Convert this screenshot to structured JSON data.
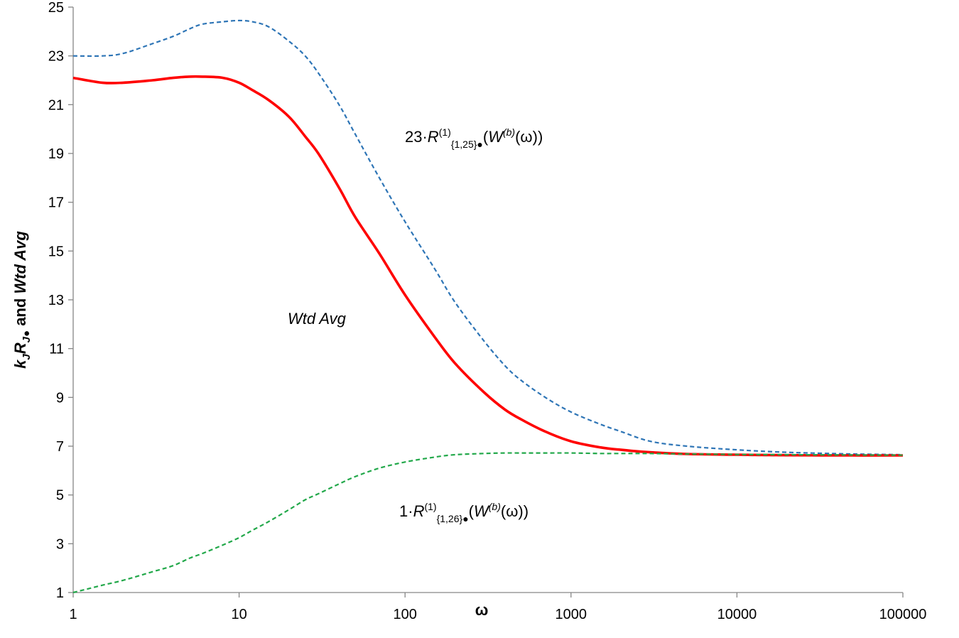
{
  "chart_data": {
    "type": "line",
    "xlabel": "ω",
    "ylabel": "k_J R_J• and Wtd Avg",
    "xscale": "log",
    "xlim": [
      1,
      100000
    ],
    "ylim": [
      1,
      25
    ],
    "x_ticks": [
      "1",
      "10",
      "100",
      "1000",
      "10000",
      "100000"
    ],
    "y_ticks": [
      "1",
      "3",
      "5",
      "7",
      "9",
      "11",
      "13",
      "15",
      "17",
      "19",
      "21",
      "23",
      "25"
    ],
    "grid": false,
    "series": [
      {
        "key": "upper",
        "color": "#2e75b6",
        "style": "dashed",
        "x": [
          1,
          1.5,
          2,
          3,
          4,
          5,
          6,
          8,
          10,
          12,
          15,
          20,
          25,
          30,
          40,
          50,
          70,
          100,
          150,
          200,
          300,
          400,
          500,
          700,
          1000,
          1500,
          2000,
          3000,
          5000,
          10000,
          20000,
          50000,
          100000
        ],
        "y": [
          23.0,
          23.0,
          23.1,
          23.5,
          23.8,
          24.1,
          24.3,
          24.4,
          24.45,
          24.4,
          24.2,
          23.6,
          23.0,
          22.3,
          21.0,
          19.8,
          18.0,
          16.2,
          14.3,
          12.9,
          11.3,
          10.3,
          9.7,
          9.0,
          8.4,
          7.9,
          7.6,
          7.2,
          7.0,
          6.85,
          6.75,
          6.68,
          6.65
        ]
      },
      {
        "key": "wtd",
        "color": "#ff0000",
        "style": "solid",
        "x": [
          1,
          1.5,
          2,
          3,
          4,
          5,
          6,
          8,
          10,
          12,
          15,
          20,
          25,
          30,
          40,
          50,
          70,
          100,
          150,
          200,
          300,
          400,
          500,
          700,
          1000,
          1500,
          2000,
          3000,
          5000,
          10000,
          20000,
          50000,
          100000
        ],
        "y": [
          22.1,
          21.9,
          21.9,
          22.0,
          22.1,
          22.15,
          22.15,
          22.1,
          21.9,
          21.6,
          21.2,
          20.5,
          19.7,
          19.0,
          17.6,
          16.4,
          14.9,
          13.2,
          11.5,
          10.4,
          9.2,
          8.5,
          8.1,
          7.6,
          7.2,
          6.95,
          6.85,
          6.75,
          6.68,
          6.65,
          6.63,
          6.62,
          6.62
        ]
      },
      {
        "key": "lower",
        "color": "#22a84a",
        "style": "dashed",
        "x": [
          1,
          1.5,
          2,
          3,
          4,
          5,
          6,
          8,
          10,
          12,
          15,
          20,
          25,
          30,
          40,
          50,
          70,
          100,
          150,
          200,
          300,
          400,
          500,
          700,
          1000,
          1500,
          2000,
          3000,
          5000,
          10000,
          20000,
          50000,
          100000
        ],
        "y": [
          1.0,
          1.3,
          1.5,
          1.85,
          2.1,
          2.4,
          2.6,
          2.95,
          3.25,
          3.55,
          3.9,
          4.4,
          4.8,
          5.05,
          5.45,
          5.75,
          6.1,
          6.35,
          6.55,
          6.65,
          6.7,
          6.72,
          6.72,
          6.72,
          6.72,
          6.7,
          6.7,
          6.7,
          6.68,
          6.66,
          6.65,
          6.64,
          6.63
        ]
      }
    ],
    "annotations": {
      "upper": {
        "coef": "23·",
        "R": "R",
        "sup": "(1)",
        "sub": "{1,25}",
        "dot": "●",
        "open": "(",
        "W": "W",
        "wsup": "(b)",
        "tail": "(ω))"
      },
      "wtd": {
        "text": "Wtd Avg"
      },
      "lower": {
        "coef": "1·",
        "R": "R",
        "sup": "(1)",
        "sub": "{1,26}",
        "dot": "●",
        "open": "(",
        "W": "W",
        "wsup": "(b)",
        "tail": "(ω))"
      }
    }
  }
}
